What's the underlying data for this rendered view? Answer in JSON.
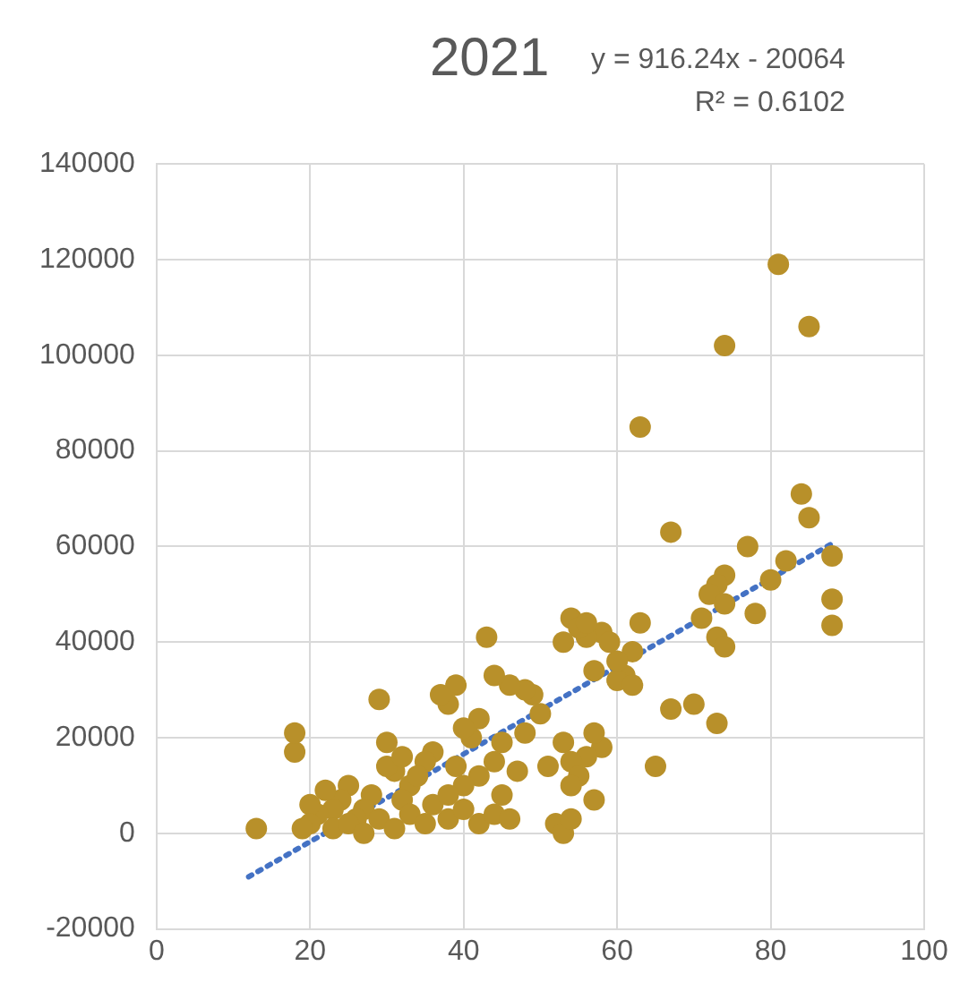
{
  "chart_data": {
    "type": "scatter",
    "title": "2021",
    "annotations": [
      "y = 916.24x - 20064",
      "R² = 0.6102"
    ],
    "xlim": [
      0,
      100
    ],
    "xticks": [
      0,
      20,
      40,
      60,
      80,
      100
    ],
    "ylim": [
      -20000,
      140000
    ],
    "yticks": [
      -20000,
      0,
      20000,
      40000,
      60000,
      80000,
      100000,
      120000,
      140000
    ],
    "grid": true,
    "legend": false,
    "marker": "circle",
    "series": [
      {
        "color": "#b8902a",
        "x": [
          81,
          85,
          74,
          63,
          67,
          77,
          84,
          85,
          88,
          88,
          88,
          82,
          80,
          78,
          74,
          73,
          72,
          74,
          71,
          73,
          74,
          73,
          70,
          67,
          65,
          63,
          62,
          61,
          60,
          62,
          58,
          56,
          54,
          55,
          56,
          53,
          57,
          58,
          57,
          57,
          56,
          53,
          54,
          52,
          53,
          54,
          55,
          54,
          51,
          49,
          48,
          46,
          44,
          43,
          42,
          41,
          40,
          39,
          38,
          39,
          37,
          36,
          35,
          33,
          32,
          31,
          30,
          29,
          30,
          28,
          27,
          26,
          25,
          24,
          23,
          22,
          21,
          20,
          20,
          19,
          18,
          18,
          13,
          23,
          25,
          27,
          29,
          31,
          33,
          35,
          36,
          38,
          40,
          42,
          44,
          46,
          45,
          47,
          45,
          44,
          42,
          40,
          38,
          34,
          32,
          48,
          50,
          60,
          59
        ],
        "values": [
          119000,
          106000,
          102000,
          85000,
          63000,
          60000,
          71000,
          66000,
          58000,
          49000,
          43500,
          57000,
          53000,
          46000,
          54000,
          52000,
          50000,
          48000,
          45000,
          41000,
          39000,
          23000,
          27000,
          26000,
          14000,
          44000,
          38000,
          33000,
          32000,
          31000,
          42000,
          41000,
          45000,
          43000,
          44000,
          40000,
          34000,
          18000,
          21000,
          7000,
          16000,
          19000,
          15000,
          2000,
          0,
          3000,
          12000,
          10000,
          14000,
          29000,
          30000,
          31000,
          33000,
          41000,
          24000,
          20000,
          22000,
          14000,
          27000,
          31000,
          29000,
          17000,
          15000,
          10000,
          7000,
          13000,
          19000,
          28000,
          14000,
          8000,
          5000,
          3000,
          10000,
          7000,
          5000,
          9000,
          4000,
          6000,
          2000,
          1000,
          17000,
          21000,
          1000,
          1000,
          2000,
          0,
          3000,
          1000,
          4000,
          2000,
          6000,
          3000,
          5000,
          2000,
          4000,
          3000,
          8000,
          13000,
          19000,
          15000,
          12000,
          10000,
          8000,
          12000,
          16000,
          21000,
          25000,
          36000,
          40000
        ]
      },
      {
        "type": "line",
        "color": "#4472c4",
        "line_style": "dotted",
        "marker": "none",
        "x": [
          12,
          88
        ],
        "values": [
          -9100,
          60600
        ]
      }
    ]
  }
}
